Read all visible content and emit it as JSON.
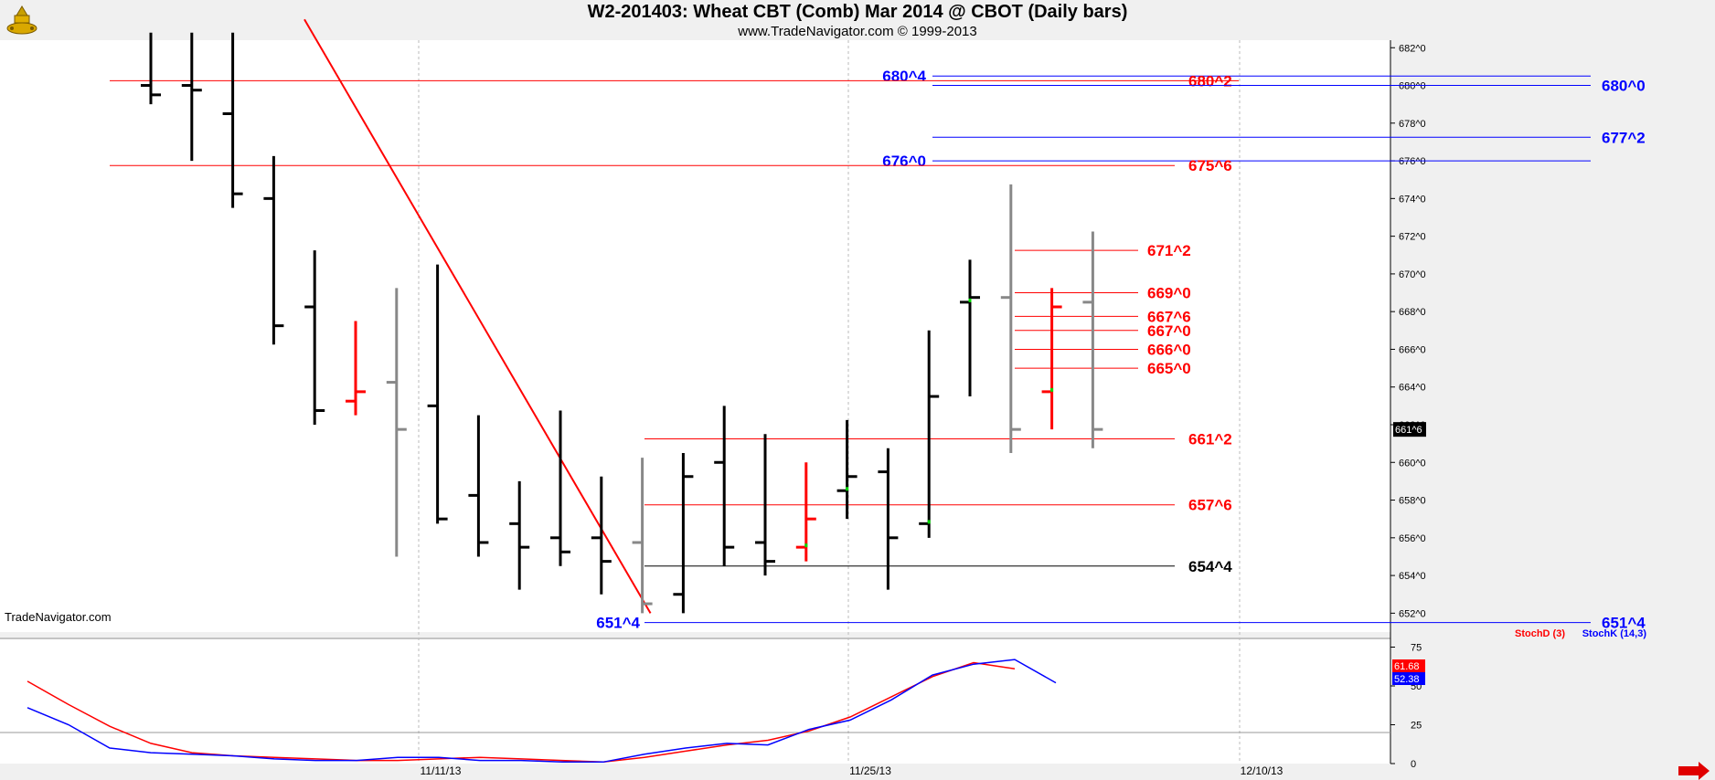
{
  "header": {
    "title": "W2-201403:  Wheat CBT (Comb) Mar 2014 @ CBOT  (Daily bars)",
    "subtitle": "www.TradeNavigator.com © 1999-2013",
    "watermark": "TradeNavigator.com"
  },
  "colors": {
    "up": "#000000",
    "down": "#ff0000",
    "neutral": "#888888",
    "blue": "#0000ff",
    "green": "#00dd00",
    "bg": "#ffffff",
    "frame": "#f0f0f0"
  },
  "icons": {
    "logo": "tradenavigator-logo-icon",
    "scroll": "scroll-right-arrow-icon"
  },
  "chart_data": [
    {
      "type": "ohlc",
      "title": "W2-201403:  Wheat CBT (Comb) Mar 2014 @ CBOT  (Daily bars)",
      "y_ticks": [
        "682^0",
        "680^0",
        "678^0",
        "676^0",
        "674^0",
        "672^0",
        "670^0",
        "668^0",
        "666^0",
        "664^0",
        "662^0",
        "660^0",
        "658^0",
        "656^0",
        "654^0",
        "652^0"
      ],
      "ylim": [
        651,
        682.4
      ],
      "x_ticks": [
        "11/11/13",
        "11/25/13",
        "12/10/13"
      ],
      "last_price_label": "661^6",
      "last_price": 661.75,
      "bars": [
        {
          "h": 684,
          "l": 679,
          "o": 680,
          "c": 679.5,
          "color": "up"
        },
        {
          "h": 684,
          "l": 676,
          "o": 680,
          "c": 679.75,
          "color": "up"
        },
        {
          "h": 684,
          "l": 673.5,
          "o": 678.5,
          "c": 674.25,
          "color": "up"
        },
        {
          "h": 676.25,
          "l": 666.25,
          "o": 674,
          "c": 667.25,
          "color": "up"
        },
        {
          "h": 671.25,
          "l": 662,
          "o": 668.25,
          "c": 662.75,
          "color": "up"
        },
        {
          "h": 667.5,
          "l": 662.5,
          "o": 663.25,
          "c": 663.75,
          "color": "down"
        },
        {
          "h": 669.25,
          "l": 655,
          "o": 664.25,
          "c": 661.75,
          "color": "neutral"
        },
        {
          "h": 670.5,
          "l": 656.75,
          "o": 663,
          "c": 657,
          "color": "up"
        },
        {
          "h": 662.5,
          "l": 655,
          "o": 658.25,
          "c": 655.75,
          "color": "up"
        },
        {
          "h": 659,
          "l": 653.25,
          "o": 656.75,
          "c": 655.5,
          "color": "up"
        },
        {
          "h": 662.75,
          "l": 654.5,
          "o": 656,
          "c": 655.25,
          "color": "up"
        },
        {
          "h": 659.25,
          "l": 653,
          "o": 656,
          "c": 654.75,
          "color": "up"
        },
        {
          "h": 660.25,
          "l": 652,
          "o": 655.75,
          "c": 652.5,
          "color": "neutral"
        },
        {
          "h": 660.5,
          "l": 652,
          "o": 653,
          "c": 659.25,
          "color": "up"
        },
        {
          "h": 663,
          "l": 654.5,
          "o": 660,
          "c": 655.5,
          "color": "up"
        },
        {
          "h": 661.5,
          "l": 654,
          "o": 655.75,
          "c": 654.75,
          "color": "up"
        },
        {
          "h": 660,
          "l": 654.75,
          "o": 655.5,
          "c": 657,
          "color": "down",
          "o_tick": "green"
        },
        {
          "h": 662.25,
          "l": 657,
          "o": 658.5,
          "c": 659.25,
          "color": "up",
          "o_tick": "green"
        },
        {
          "h": 660.75,
          "l": 653.25,
          "o": 659.5,
          "c": 656,
          "color": "up"
        },
        {
          "h": 667,
          "l": 656,
          "o": 656.75,
          "c": 663.5,
          "color": "up",
          "o_tick": "green"
        },
        {
          "h": 670.75,
          "l": 663.5,
          "o": 668.5,
          "c": 668.75,
          "color": "up",
          "o_tick": "green"
        },
        {
          "h": 674.75,
          "l": 660.5,
          "o": 668.75,
          "c": 661.75,
          "color": "neutral"
        },
        {
          "h": 669.25,
          "l": 661.75,
          "o": 663.75,
          "c": 668.25,
          "color": "down",
          "o_tick": "green"
        },
        {
          "h": 672.25,
          "l": 660.75,
          "o": 668.5,
          "c": 661.75,
          "color": "neutral"
        }
      ],
      "levels": [
        {
          "label": "680^4",
          "value": 680.5,
          "color": "blue",
          "label_side": "left"
        },
        {
          "label": "680^2",
          "value": 680.25,
          "color": "red"
        },
        {
          "label": "680^0",
          "value": 680,
          "color": "blue"
        },
        {
          "label": "677^2",
          "value": 677.25,
          "color": "blue"
        },
        {
          "label": "676^0",
          "value": 676,
          "color": "blue",
          "label_side": "left"
        },
        {
          "label": "675^6",
          "value": 675.75,
          "color": "red"
        },
        {
          "label": "671^2",
          "value": 671.25,
          "color": "red"
        },
        {
          "label": "669^0",
          "value": 669,
          "color": "red"
        },
        {
          "label": "667^6",
          "value": 667.75,
          "color": "red"
        },
        {
          "label": "667^0",
          "value": 667,
          "color": "red"
        },
        {
          "label": "666^0",
          "value": 666,
          "color": "red"
        },
        {
          "label": "665^0",
          "value": 665,
          "color": "red"
        },
        {
          "label": "661^2",
          "value": 661.25,
          "color": "red"
        },
        {
          "label": "657^6",
          "value": 657.75,
          "color": "red"
        },
        {
          "label": "654^4",
          "value": 654.5,
          "color": "up"
        },
        {
          "label": "651^4",
          "value": 651.5,
          "color": "blue",
          "label_side": "both"
        }
      ],
      "trendline": {
        "from": {
          "bar": 3.75,
          "value": 683.5
        },
        "to": {
          "bar": 12.2,
          "value": 652
        },
        "color": "red"
      }
    },
    {
      "type": "line",
      "legend": [
        "StochD (3)",
        "StochK (14,3)"
      ],
      "y_ticks": [
        "75",
        "50",
        "25",
        "0"
      ],
      "ylim": [
        0,
        80
      ],
      "readouts": [
        "61.68",
        "52.38"
      ],
      "series": [
        {
          "name": "StochD (3)",
          "color": "red",
          "values": [
            53,
            38,
            24,
            13,
            7,
            5,
            4,
            3,
            2,
            2,
            3,
            4,
            3,
            2,
            1,
            4,
            8,
            12,
            15,
            21,
            30,
            43,
            56,
            65,
            61
          ]
        },
        {
          "name": "StochK (14,3)",
          "color": "blue",
          "values": [
            36,
            25,
            10,
            7,
            6,
            5,
            3,
            2,
            2,
            4,
            4,
            2,
            2,
            1,
            1,
            6,
            10,
            13,
            12,
            22,
            28,
            41,
            57,
            64,
            67,
            52
          ]
        }
      ]
    }
  ]
}
